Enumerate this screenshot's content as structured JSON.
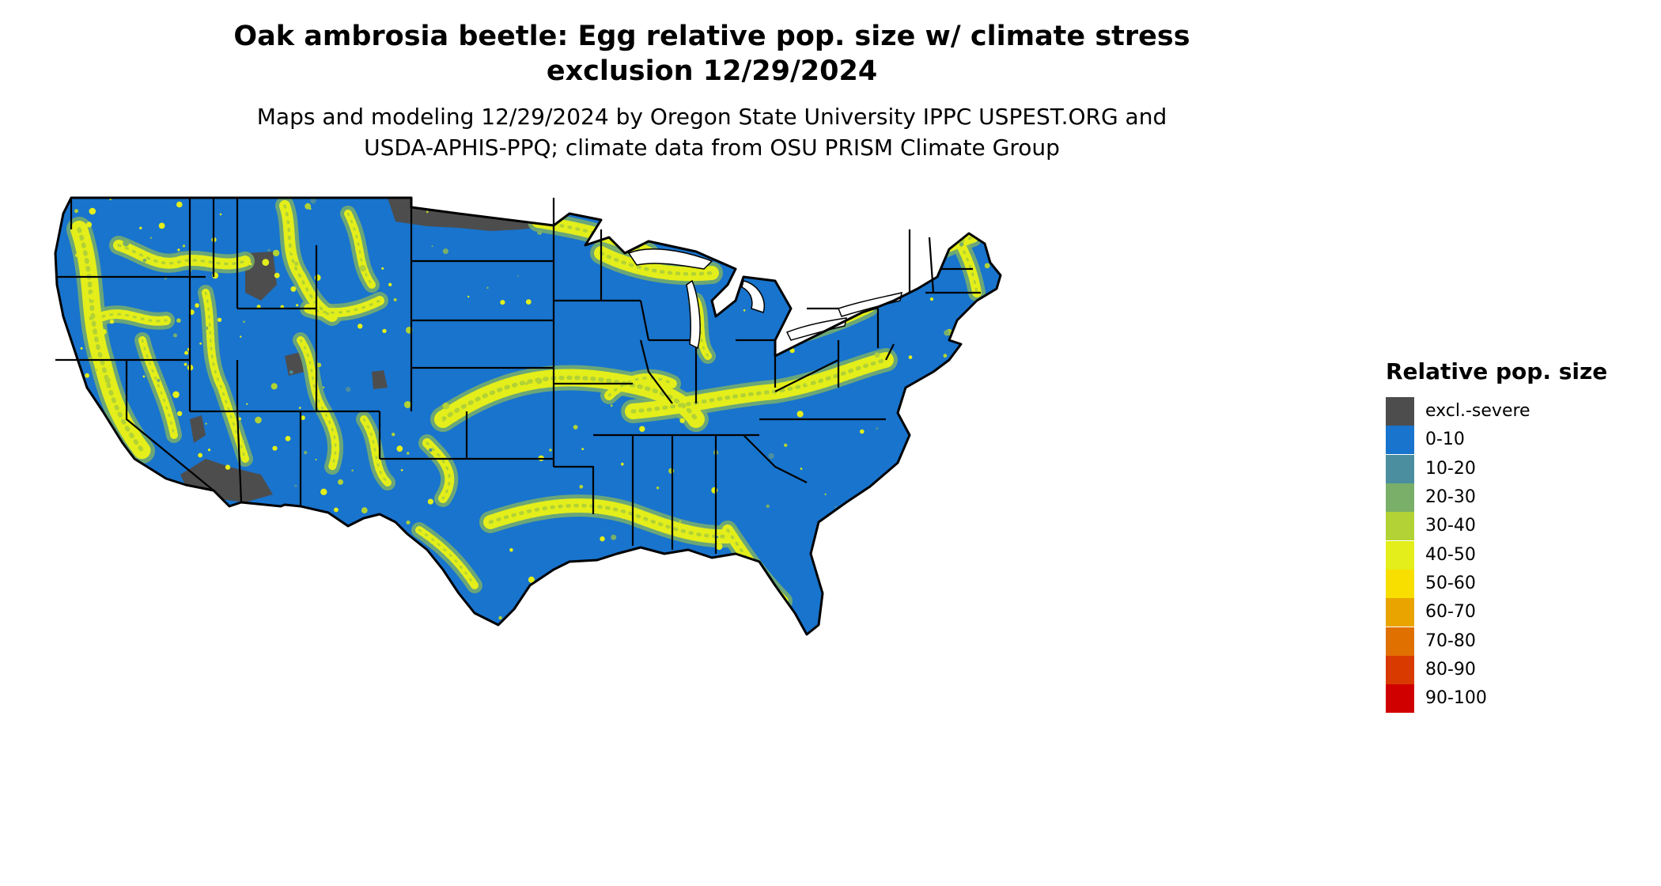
{
  "title": {
    "line1": "Oak ambrosia beetle: Egg relative pop. size w/ climate stress",
    "line2": "exclusion 12/29/2024"
  },
  "subtitle": {
    "line1": "Maps and modeling 12/29/2024 by Oregon State University IPPC USPEST.ORG and",
    "line2": "USDA-APHIS-PPQ; climate data from OSU PRISM Climate Group"
  },
  "legend": {
    "title": "Relative pop. size",
    "items": [
      {
        "label": "excl.-severe",
        "color": "#4d4d4d"
      },
      {
        "label": "0-10",
        "color": "#1874cd"
      },
      {
        "label": "10-20",
        "color": "#4a8ea0"
      },
      {
        "label": "20-30",
        "color": "#7aaf6a"
      },
      {
        "label": "30-40",
        "color": "#b2d235"
      },
      {
        "label": "40-50",
        "color": "#e3ee1a"
      },
      {
        "label": "50-60",
        "color": "#f8df00"
      },
      {
        "label": "60-70",
        "color": "#e9a400"
      },
      {
        "label": "70-80",
        "color": "#e07000"
      },
      {
        "label": "80-90",
        "color": "#d93a00"
      },
      {
        "label": "90-100",
        "color": "#d00000"
      }
    ]
  },
  "map": {
    "base_color": "#1874cd",
    "border_color": "#000000"
  }
}
